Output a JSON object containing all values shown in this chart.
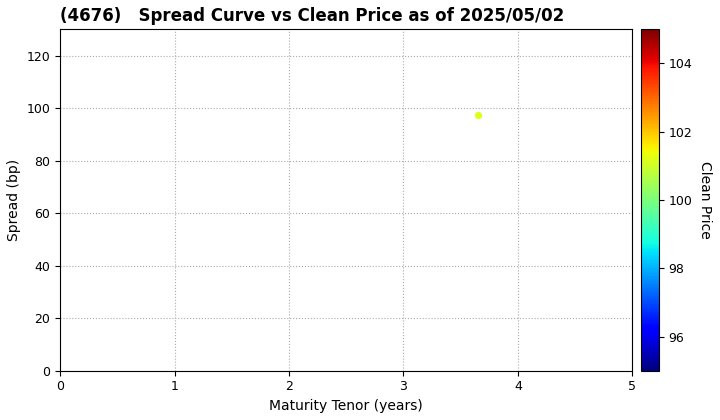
{
  "title": "(4676)   Spread Curve vs Clean Price as of 2025/05/02",
  "xlabel": "Maturity Tenor (years)",
  "ylabel": "Spread (bp)",
  "colorbar_label": "Clean Price",
  "xlim": [
    0,
    5
  ],
  "ylim": [
    0,
    130
  ],
  "xticks": [
    0,
    1,
    2,
    3,
    4,
    5
  ],
  "yticks": [
    0,
    20,
    40,
    60,
    80,
    100,
    120
  ],
  "colorbar_ticks": [
    96,
    98,
    100,
    102,
    104
  ],
  "colorbar_min": 95,
  "colorbar_max": 105,
  "point_x": 3.65,
  "point_y": 97.5,
  "point_color_value": 101.2,
  "grid_color": "#aaaaaa",
  "background_color": "#ffffff",
  "title_fontsize": 12,
  "axis_fontsize": 10,
  "title_fontweight": "bold"
}
